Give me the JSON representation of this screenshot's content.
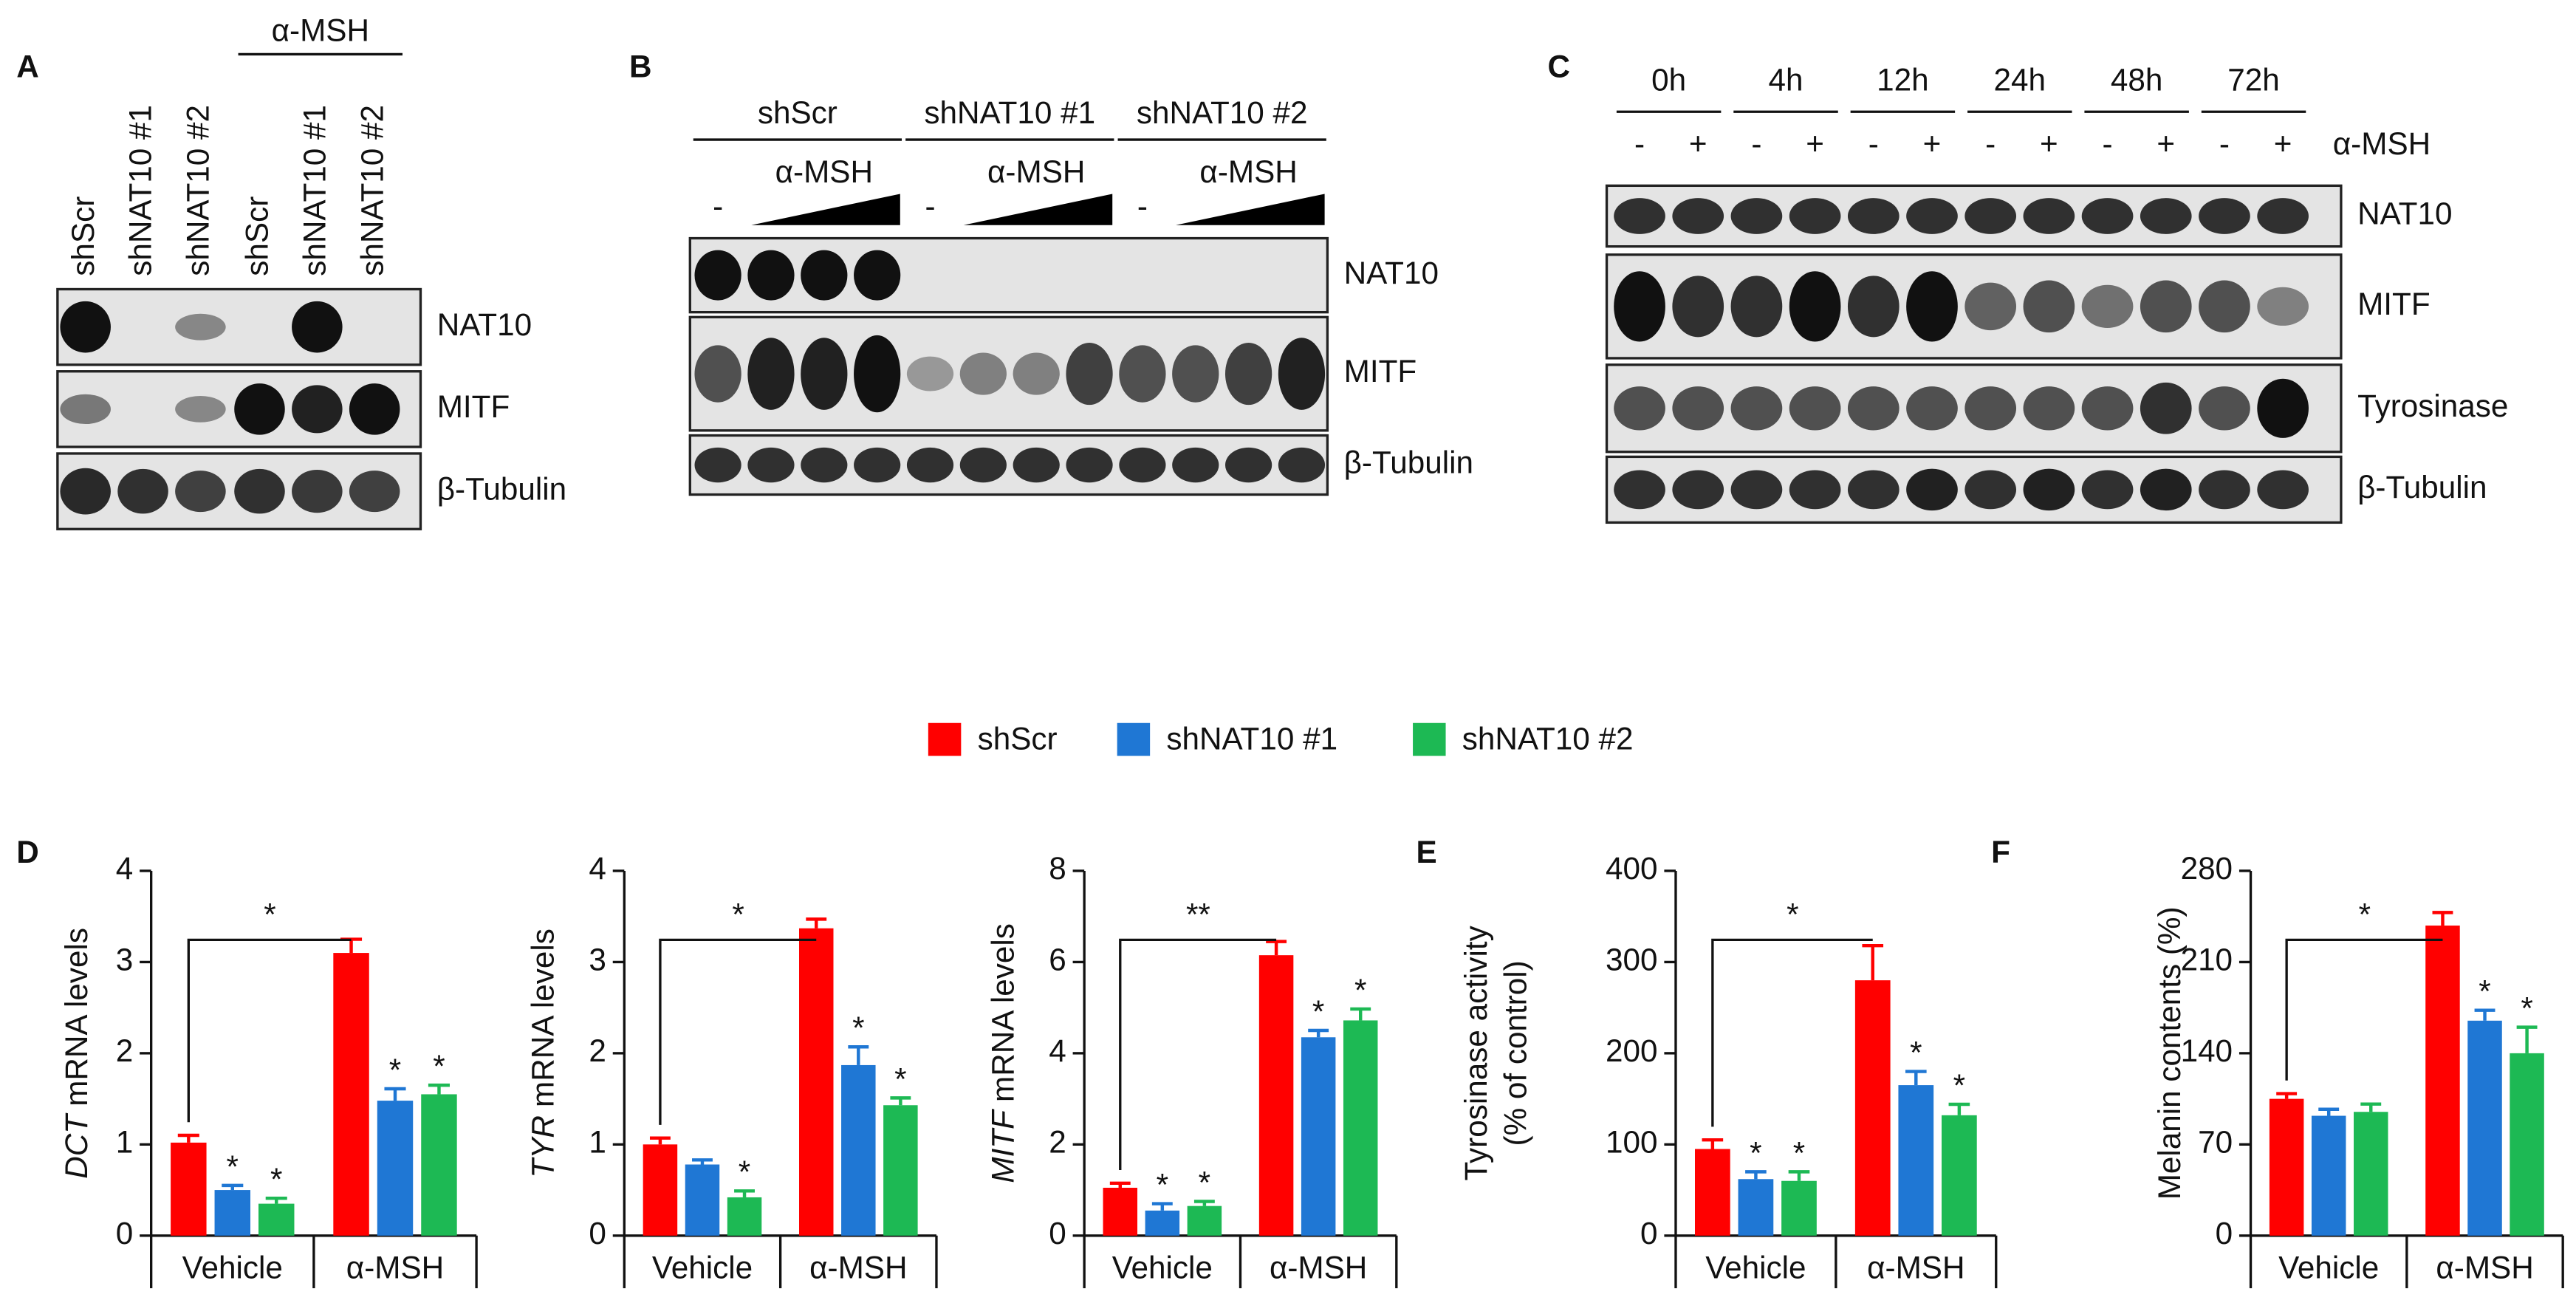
{
  "blots": [
    {
      "letter": "A",
      "group_label": "α-MSH",
      "lanes": [
        "shScr",
        "shNAT10 #1",
        "shNAT10 #2",
        "shScr",
        "shNAT10 #1",
        "shNAT10 #2"
      ],
      "rows": [
        "NAT10",
        "MITF",
        "β-Tubulin"
      ]
    },
    {
      "letter": "B",
      "groups": [
        {
          "name": "shScr",
          "untreated": "-",
          "treatment": "α-MSH"
        },
        {
          "name": "shNAT10 #1",
          "untreated": "-",
          "treatment": "α-MSH"
        },
        {
          "name": "shNAT10 #2",
          "untreated": "-",
          "treatment": "α-MSH"
        }
      ],
      "rows": [
        "NAT10",
        "MITF",
        "β-Tubulin"
      ]
    },
    {
      "letter": "C",
      "times": [
        "0h",
        "4h",
        "12h",
        "24h",
        "48h",
        "72h"
      ],
      "signs": [
        "-",
        "+"
      ],
      "treatment": "α-MSH",
      "rows": [
        "NAT10",
        "MITF",
        "Tyrosinase",
        "β-Tubulin"
      ]
    }
  ],
  "chart_data": [
    {
      "type": "bar",
      "letter": "D",
      "y_label_italic": "DCT",
      "y_label": "mRNA levels",
      "categories": [
        "Vehicle",
        "α-MSH"
      ],
      "ylim": [
        0,
        4
      ],
      "yticks": [
        0,
        1,
        2,
        3,
        4
      ],
      "bracket": "*",
      "series": [
        {
          "name": "shScr",
          "color": "#ff0000",
          "values": [
            1.02,
            3.1
          ],
          "errors": [
            0.08,
            0.15
          ],
          "significance": [
            null,
            null
          ]
        },
        {
          "name": "shNAT10 #1",
          "color": "#1f77d4",
          "values": [
            0.5,
            1.48
          ],
          "errors": [
            0.05,
            0.13
          ],
          "significance": [
            "*",
            "*"
          ]
        },
        {
          "name": "shNAT10 #2",
          "color": "#1db954",
          "values": [
            0.35,
            1.55
          ],
          "errors": [
            0.06,
            0.1
          ],
          "significance": [
            "*",
            "*"
          ]
        }
      ]
    },
    {
      "type": "bar",
      "y_label_italic": "TYR",
      "y_label": "mRNA levels",
      "categories": [
        "Vehicle",
        "α-MSH"
      ],
      "ylim": [
        0,
        4
      ],
      "yticks": [
        0,
        1,
        2,
        3,
        4
      ],
      "bracket": "*",
      "series": [
        {
          "color": "#ff0000",
          "values": [
            1.0,
            3.37
          ],
          "errors": [
            0.07,
            0.1
          ],
          "significance": [
            null,
            null
          ]
        },
        {
          "color": "#1f77d4",
          "values": [
            0.78,
            1.87
          ],
          "errors": [
            0.05,
            0.2
          ],
          "significance": [
            null,
            "*"
          ]
        },
        {
          "color": "#1db954",
          "values": [
            0.42,
            1.43
          ],
          "errors": [
            0.07,
            0.08
          ],
          "significance": [
            "*",
            "*"
          ]
        }
      ]
    },
    {
      "type": "bar",
      "y_label_italic": "MITF",
      "y_label": "mRNA levels",
      "categories": [
        "Vehicle",
        "α-MSH"
      ],
      "ylim": [
        0,
        8
      ],
      "yticks": [
        0,
        2,
        4,
        6,
        8
      ],
      "bracket": "**",
      "series": [
        {
          "color": "#ff0000",
          "values": [
            1.05,
            6.15
          ],
          "errors": [
            0.1,
            0.3
          ],
          "significance": [
            null,
            null
          ]
        },
        {
          "color": "#1f77d4",
          "values": [
            0.55,
            4.35
          ],
          "errors": [
            0.15,
            0.15
          ],
          "significance": [
            "*",
            "*"
          ]
        },
        {
          "color": "#1db954",
          "values": [
            0.65,
            4.72
          ],
          "errors": [
            0.1,
            0.25
          ],
          "significance": [
            "*",
            "*"
          ]
        }
      ]
    },
    {
      "type": "bar",
      "letter": "E",
      "y_label": [
        "Tyrosinase activity",
        "(% of control)"
      ],
      "categories": [
        "Vehicle",
        "α-MSH"
      ],
      "ylim": [
        0,
        400
      ],
      "yticks": [
        0,
        100,
        200,
        300,
        400
      ],
      "bracket": "*",
      "series": [
        {
          "color": "#ff0000",
          "values": [
            95,
            280
          ],
          "errors": [
            10,
            38
          ],
          "significance": [
            null,
            null
          ]
        },
        {
          "color": "#1f77d4",
          "values": [
            62,
            165
          ],
          "errors": [
            8,
            15
          ],
          "significance": [
            "*",
            "*"
          ]
        },
        {
          "color": "#1db954",
          "values": [
            60,
            132
          ],
          "errors": [
            10,
            12
          ],
          "significance": [
            "*",
            "*"
          ]
        }
      ]
    },
    {
      "type": "bar",
      "letter": "F",
      "y_label": "Melanin contents (%)",
      "categories": [
        "Vehicle",
        "α-MSH"
      ],
      "ylim": [
        0,
        280
      ],
      "yticks": [
        0,
        70,
        140,
        210,
        280
      ],
      "bracket": "*",
      "series": [
        {
          "color": "#ff0000",
          "values": [
            105,
            238
          ],
          "errors": [
            4,
            10
          ],
          "significance": [
            null,
            null
          ]
        },
        {
          "color": "#1f77d4",
          "values": [
            92,
            165
          ],
          "errors": [
            5,
            8
          ],
          "significance": [
            null,
            "*"
          ]
        },
        {
          "color": "#1db954",
          "values": [
            95,
            140
          ],
          "errors": [
            6,
            20
          ],
          "significance": [
            null,
            "*"
          ]
        }
      ]
    }
  ]
}
